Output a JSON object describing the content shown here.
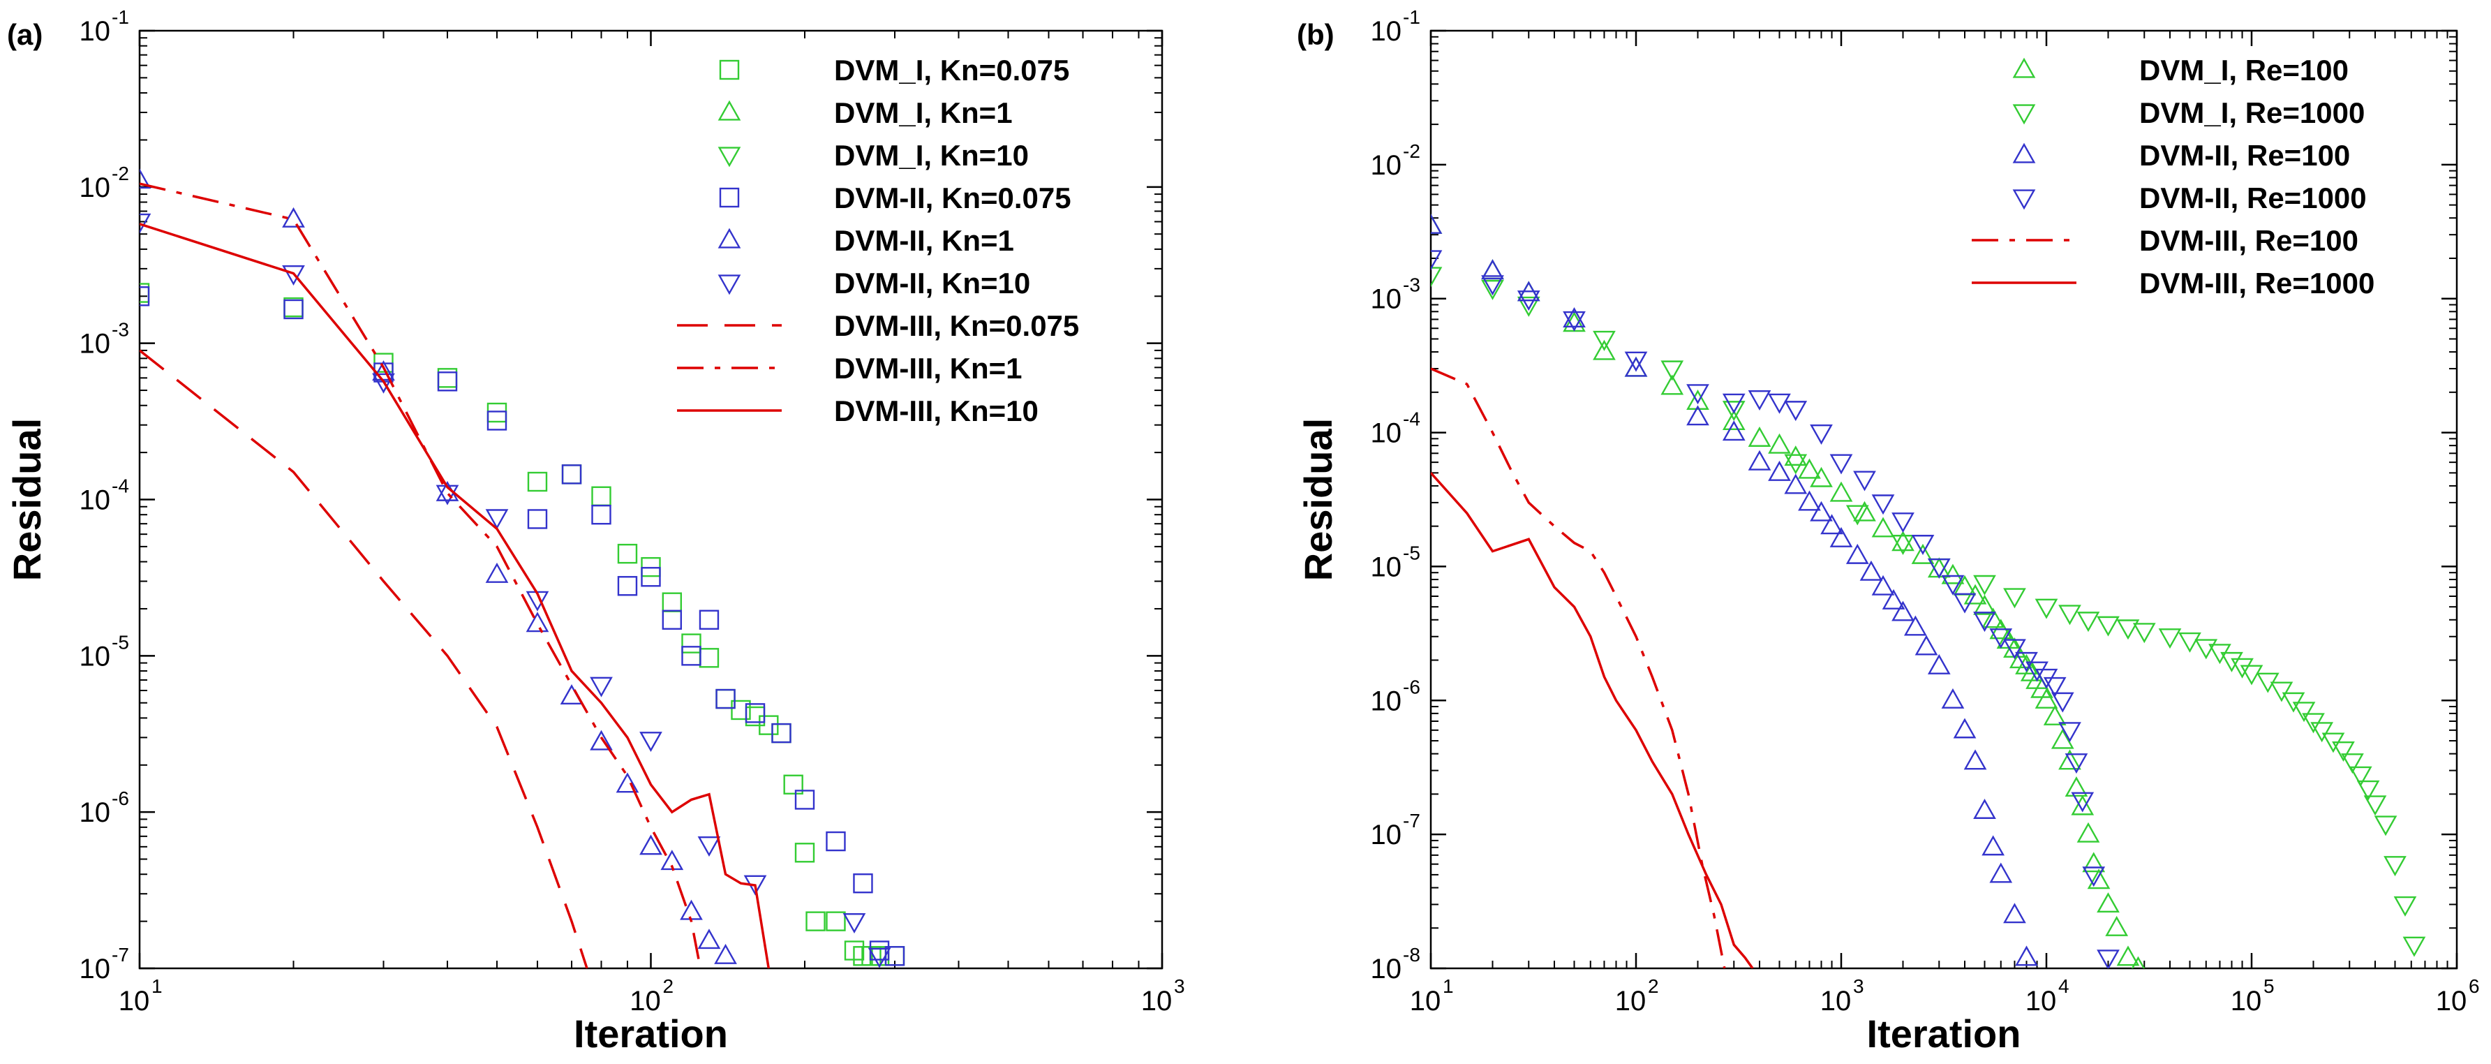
{
  "chart_data": [
    {
      "panel_label": "(a)",
      "type": "scatter",
      "xlabel": "Iteration",
      "ylabel": "Residual",
      "xscale": "log",
      "yscale": "log",
      "xlim": [
        10,
        1000
      ],
      "ylim": [
        1e-07,
        0.1
      ],
      "x_ticks": [
        {
          "base": "10",
          "exp": "1"
        },
        {
          "base": "10",
          "exp": "2"
        },
        {
          "base": "10",
          "exp": "3"
        }
      ],
      "y_ticks": [
        {
          "base": "10",
          "exp": "-1"
        },
        {
          "base": "10",
          "exp": "-2"
        },
        {
          "base": "10",
          "exp": "-3"
        },
        {
          "base": "10",
          "exp": "-4"
        },
        {
          "base": "10",
          "exp": "-5"
        },
        {
          "base": "10",
          "exp": "-6"
        },
        {
          "base": "10",
          "exp": "-7"
        }
      ],
      "grid": false,
      "legend_position": "top-right",
      "series": [
        {
          "name": "DVM_I, Kn=0.075",
          "marker": "square",
          "color": "#33cc33",
          "x": [
            10,
            20,
            30,
            40,
            50,
            60,
            70,
            80,
            90,
            100,
            110,
            120,
            130,
            140,
            150,
            160,
            170,
            180,
            190,
            200,
            210,
            230,
            250,
            260,
            270,
            280,
            300
          ],
          "y": [
            0.0021,
            0.0017,
            0.00075,
            0.0006,
            0.00036,
            0.00013,
            0.000145,
            0.000105,
            4.5e-05,
            3.7e-05,
            2.2e-05,
            1.2e-05,
            9.7e-06,
            5.3e-06,
            4.5e-06,
            4.1e-06,
            3.6e-06,
            3.2e-06,
            1.5e-06,
            5.5e-07,
            2e-07,
            2e-07,
            1.3e-07,
            1.2e-07,
            1.2e-07,
            1.2e-07,
            1.2e-07
          ]
        },
        {
          "name": "DVM_I, Kn=1",
          "marker": "triangle-up",
          "color": "#33cc33",
          "x": [],
          "y": []
        },
        {
          "name": "DVM_I, Kn=10",
          "marker": "triangle-down",
          "color": "#33cc33",
          "x": [],
          "y": []
        },
        {
          "name": "DVM-II, Kn=0.075",
          "marker": "square",
          "color": "#3333cc",
          "x": [
            10,
            20,
            30,
            40,
            50,
            60,
            70,
            80,
            90,
            100,
            110,
            120,
            130,
            140,
            160,
            180,
            200,
            230,
            260,
            280,
            300
          ],
          "y": [
            0.002,
            0.00165,
            0.00065,
            0.00057,
            0.00032,
            7.5e-05,
            0.000145,
            8e-05,
            2.8e-05,
            3.2e-05,
            1.7e-05,
            1e-05,
            1.7e-05,
            5.3e-06,
            4.3e-06,
            3.2e-06,
            1.2e-06,
            6.5e-07,
            3.5e-07,
            1.3e-07,
            1.2e-07
          ]
        },
        {
          "name": "DVM-II, Kn=1",
          "marker": "triangle-up",
          "color": "#3333cc",
          "x": [
            10,
            20,
            30,
            40,
            50,
            60,
            70,
            80,
            90,
            100,
            110,
            120,
            130,
            140
          ],
          "y": [
            0.011,
            0.0062,
            0.00065,
            0.00011,
            3.3e-05,
            1.6e-05,
            5.5e-06,
            2.8e-06,
            1.5e-06,
            6e-07,
            4.8e-07,
            2.3e-07,
            1.5e-07,
            1.2e-07
          ]
        },
        {
          "name": "DVM-II, Kn=10",
          "marker": "triangle-down",
          "color": "#3333cc",
          "x": [
            10,
            20,
            30,
            40,
            50,
            60,
            80,
            100,
            130,
            160,
            250,
            280
          ],
          "y": [
            0.006,
            0.0028,
            0.00057,
            0.00011,
            7.7e-05,
            2.3e-05,
            6.5e-06,
            2.9e-06,
            6.2e-07,
            3.5e-07,
            2e-07,
            1.2e-07
          ]
        },
        {
          "name": "DVM-III, Kn=0.075",
          "line": "dash",
          "color": "#dd0000",
          "x": [
            10,
            20,
            30,
            40,
            50,
            60,
            70,
            75
          ],
          "y": [
            0.0009,
            0.00015,
            3e-05,
            1e-05,
            3.5e-06,
            8e-07,
            2e-07,
            1e-07
          ]
        },
        {
          "name": "DVM-III, Kn=1",
          "line": "dashdot",
          "color": "#dd0000",
          "x": [
            10,
            20,
            30,
            40,
            50,
            60,
            70,
            80,
            90,
            100,
            110,
            120,
            125
          ],
          "y": [
            0.0105,
            0.0062,
            0.0007,
            0.00011,
            5e-05,
            1.6e-05,
            6.5e-06,
            3e-06,
            1.7e-06,
            8e-07,
            4.5e-07,
            2e-07,
            1e-07
          ]
        },
        {
          "name": "DVM-III, Kn=10",
          "line": "solid",
          "color": "#dd0000",
          "x": [
            10,
            20,
            30,
            40,
            50,
            60,
            70,
            80,
            90,
            100,
            110,
            120,
            130,
            140,
            150,
            160,
            170
          ],
          "y": [
            0.0058,
            0.0028,
            0.00057,
            0.00012,
            6.5e-05,
            2.5e-05,
            8e-06,
            5e-06,
            3e-06,
            1.5e-06,
            1e-06,
            1.2e-06,
            1.3e-06,
            4e-07,
            3.5e-07,
            3.4e-07,
            1e-07
          ]
        }
      ]
    },
    {
      "panel_label": "(b)",
      "type": "scatter",
      "xlabel": "Iteration",
      "ylabel": "Residual",
      "xscale": "log",
      "yscale": "log",
      "xlim": [
        10,
        1000000
      ],
      "ylim": [
        1e-08,
        0.1
      ],
      "x_ticks": [
        {
          "base": "10",
          "exp": "1"
        },
        {
          "base": "10",
          "exp": "2"
        },
        {
          "base": "10",
          "exp": "3"
        },
        {
          "base": "10",
          "exp": "4"
        },
        {
          "base": "10",
          "exp": "5"
        },
        {
          "base": "10",
          "exp": "6"
        }
      ],
      "y_ticks": [
        {
          "base": "10",
          "exp": "-1"
        },
        {
          "base": "10",
          "exp": "-2"
        },
        {
          "base": "10",
          "exp": "-3"
        },
        {
          "base": "10",
          "exp": "-4"
        },
        {
          "base": "10",
          "exp": "-5"
        },
        {
          "base": "10",
          "exp": "-6"
        },
        {
          "base": "10",
          "exp": "-7"
        },
        {
          "base": "10",
          "exp": "-8"
        }
      ],
      "grid": false,
      "legend_position": "top-right",
      "series": [
        {
          "name": "DVM_I, Re=100",
          "marker": "triangle-up",
          "color": "#33cc33",
          "x": [
            10,
            20,
            30,
            50,
            70,
            100,
            150,
            200,
            300,
            400,
            500,
            600,
            700,
            800,
            1000,
            1300,
            1600,
            2000,
            2500,
            3000,
            3500,
            4000,
            4500,
            5000,
            5500,
            6000,
            6500,
            7000,
            7500,
            8000,
            8500,
            9000,
            9500,
            10000,
            11000,
            12000,
            13000,
            14000,
            15000,
            16000,
            17000,
            18000,
            20000,
            22000,
            25000,
            28000
          ],
          "y": [
            0.0035,
            0.0016,
            0.0011,
            0.00065,
            0.0004,
            0.0003,
            0.00022,
            0.00017,
            0.00012,
            9e-05,
            8e-05,
            6.5e-05,
            5.2e-05,
            4.5e-05,
            3.5e-05,
            2.5e-05,
            1.9e-05,
            1.5e-05,
            1.2e-05,
            9.5e-06,
            8.5e-06,
            7e-06,
            6e-06,
            5e-06,
            4e-06,
            3.3e-06,
            2.8e-06,
            2.4e-06,
            2e-06,
            1.8e-06,
            1.6e-06,
            1.4e-06,
            1.2e-06,
            1e-06,
            7.5e-07,
            5e-07,
            3.5e-07,
            2.2e-07,
            1.6e-07,
            1e-07,
            6e-08,
            4.5e-08,
            3e-08,
            2e-08,
            1.2e-08,
            1e-08
          ]
        },
        {
          "name": "DVM_I, Re=1000",
          "marker": "triangle-down",
          "color": "#33cc33",
          "x": [
            10,
            20,
            30,
            70,
            150,
            300,
            600,
            1200,
            2000,
            3000,
            5000,
            7000,
            10000,
            13000,
            16000,
            20000,
            25000,
            30000,
            40000,
            50000,
            60000,
            70000,
            80000,
            90000,
            100000,
            120000,
            140000,
            160000,
            180000,
            200000,
            220000,
            250000,
            280000,
            310000,
            340000,
            370000,
            400000,
            450000,
            500000,
            560000,
            620000
          ],
          "y": [
            0.0015,
            0.0012,
            0.0009,
            0.0005,
            0.0003,
            0.00015,
            6e-05,
            2.5e-05,
            1.5e-05,
            1e-05,
            7.5e-06,
            6e-06,
            5e-06,
            4.5e-06,
            4e-06,
            3.7e-06,
            3.5e-06,
            3.3e-06,
            3e-06,
            2.8e-06,
            2.5e-06,
            2.3e-06,
            2e-06,
            1.8e-06,
            1.6e-06,
            1.4e-06,
            1.2e-06,
            1e-06,
            8.5e-07,
            7e-07,
            6e-07,
            5e-07,
            4.3e-07,
            3.5e-07,
            2.8e-07,
            2.2e-07,
            1.7e-07,
            1.2e-07,
            6e-08,
            3e-08,
            1.5e-08
          ]
        },
        {
          "name": "DVM-II, Re=100",
          "marker": "triangle-up",
          "color": "#3333cc",
          "x": [
            10,
            20,
            30,
            50,
            100,
            200,
            300,
            400,
            500,
            600,
            700,
            800,
            900,
            1000,
            1200,
            1400,
            1600,
            1800,
            2000,
            2300,
            2600,
            3000,
            3500,
            4000,
            4500,
            5000,
            5500,
            6000,
            7000,
            8000
          ],
          "y": [
            0.0035,
            0.0016,
            0.0011,
            0.0007,
            0.0003,
            0.00013,
            0.0001,
            6e-05,
            5e-05,
            4e-05,
            3e-05,
            2.5e-05,
            2e-05,
            1.6e-05,
            1.2e-05,
            9e-06,
            7e-06,
            5.5e-06,
            4.5e-06,
            3.5e-06,
            2.5e-06,
            1.8e-06,
            1e-06,
            6e-07,
            3.5e-07,
            1.5e-07,
            8e-08,
            5e-08,
            2.5e-08,
            1.2e-08
          ]
        },
        {
          "name": "DVM-II, Re=1000",
          "marker": "triangle-down",
          "color": "#3333cc",
          "x": [
            10,
            20,
            30,
            50,
            100,
            200,
            300,
            400,
            500,
            600,
            800,
            1000,
            1300,
            1600,
            2000,
            2500,
            3000,
            3500,
            4000,
            5000,
            6000,
            7000,
            8000,
            9000,
            10000,
            11000,
            12000,
            13000,
            14000,
            15000,
            17000,
            20000
          ],
          "y": [
            0.002,
            0.0013,
            0.001,
            0.0007,
            0.00035,
            0.0002,
            0.00017,
            0.00018,
            0.00017,
            0.00015,
            0.0001,
            6e-05,
            4.5e-05,
            3e-05,
            2.2e-05,
            1.5e-05,
            1e-05,
            7.5e-06,
            5.5e-06,
            4e-06,
            3e-06,
            2.5e-06,
            2e-06,
            1.7e-06,
            1.5e-06,
            1.3e-06,
            1e-06,
            6e-07,
            3.5e-07,
            1.8e-07,
            5e-08,
            1.2e-08
          ]
        },
        {
          "name": "DVM-III, Re=100",
          "line": "dashdot",
          "color": "#dd0000",
          "x": [
            10,
            15,
            20,
            25,
            30,
            40,
            50,
            60,
            70,
            80,
            100,
            120,
            150,
            180,
            210,
            240,
            270
          ],
          "y": [
            0.0003,
            0.00023,
            0.0001,
            5e-05,
            3e-05,
            2e-05,
            1.5e-05,
            1.3e-05,
            9e-06,
            6e-06,
            3e-06,
            1.5e-06,
            6e-07,
            2e-07,
            6e-08,
            2.5e-08,
            1e-08
          ]
        },
        {
          "name": "DVM-III, Re=1000",
          "line": "solid",
          "color": "#dd0000",
          "x": [
            10,
            15,
            20,
            30,
            40,
            50,
            60,
            70,
            80,
            100,
            120,
            150,
            180,
            220,
            260,
            300,
            340,
            370
          ],
          "y": [
            5e-05,
            2.5e-05,
            1.3e-05,
            1.6e-05,
            7e-06,
            5e-06,
            3e-06,
            1.5e-06,
            1e-06,
            6e-07,
            3.5e-07,
            2e-07,
            1e-07,
            5e-08,
            3e-08,
            1.5e-08,
            1.2e-08,
            1e-08
          ]
        }
      ]
    }
  ]
}
